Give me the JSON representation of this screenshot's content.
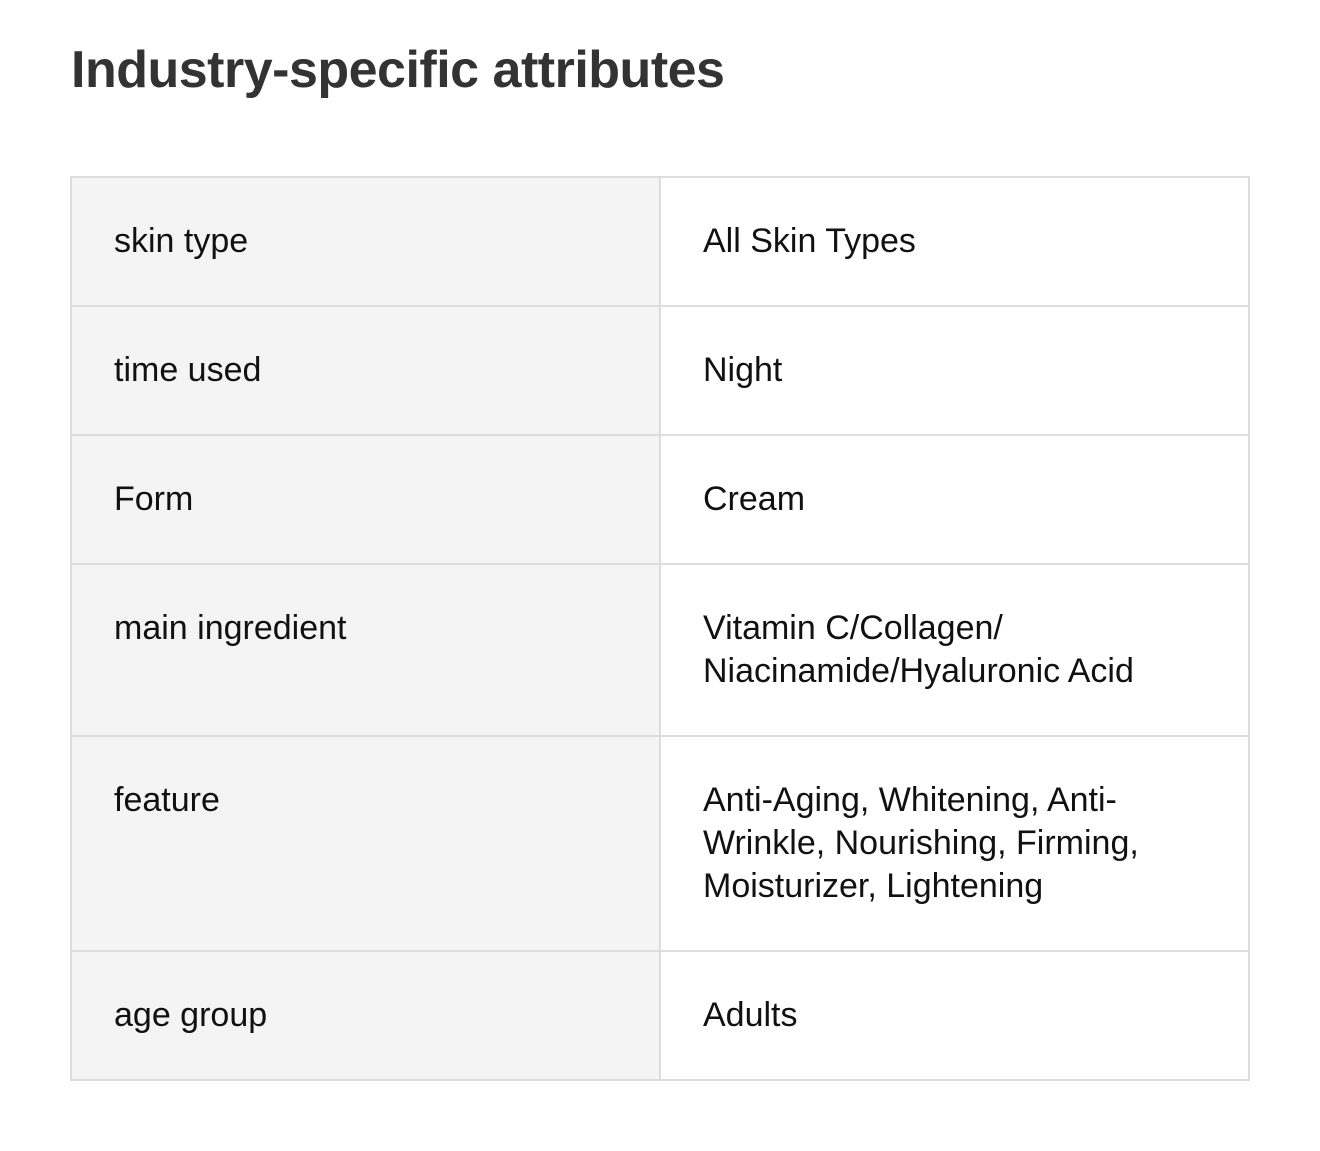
{
  "title": "Industry-specific attributes",
  "rows": [
    {
      "key": "skin type",
      "value": "All Skin Types"
    },
    {
      "key": "time used",
      "value": "Night"
    },
    {
      "key": "Form",
      "value": "Cream"
    },
    {
      "key": "main ingredient",
      "value": "Vitamin C/Collagen/ Niacinamide/Hyaluronic Acid"
    },
    {
      "key": "feature",
      "value": "Anti-Aging, Whitening, Anti-Wrinkle, Nourishing, Firming, Moisturizer, Lightening"
    },
    {
      "key": "age group",
      "value": "Adults"
    }
  ]
}
